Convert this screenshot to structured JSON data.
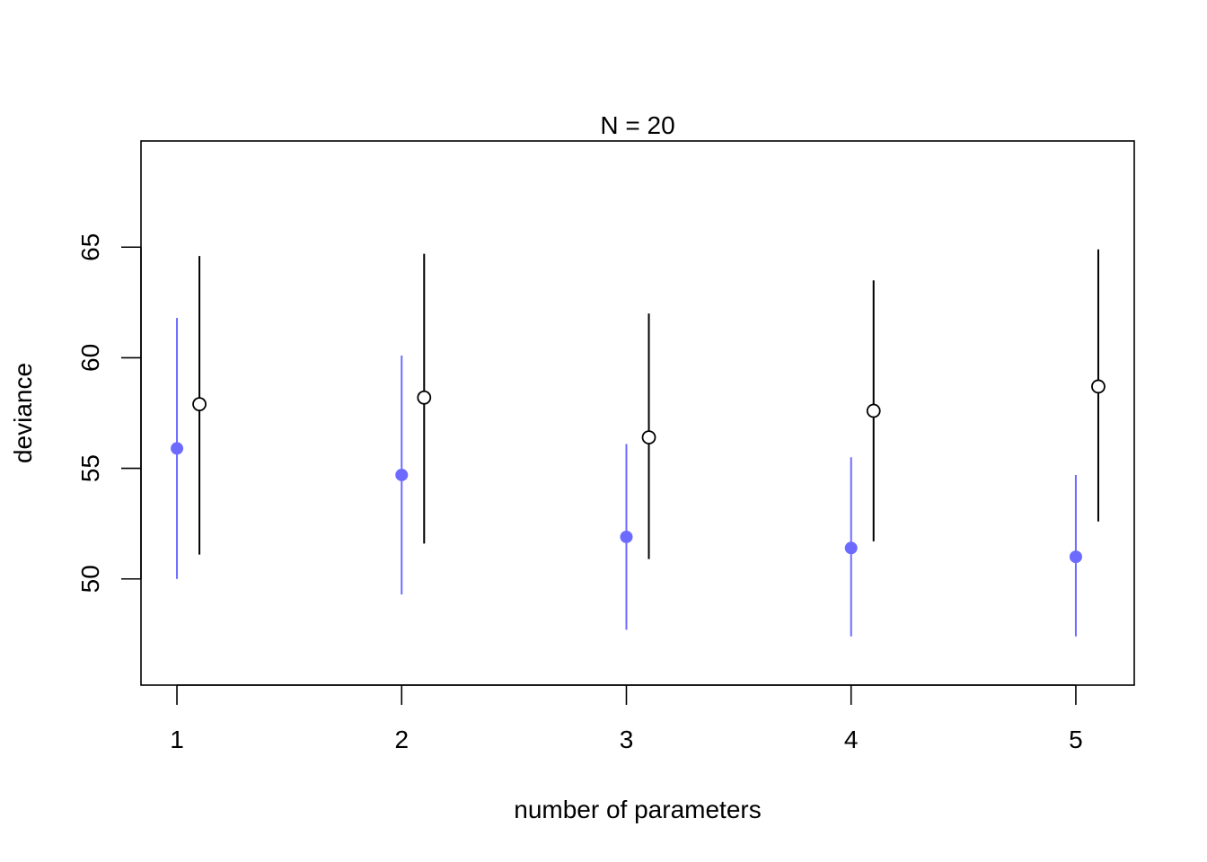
{
  "chart_data": {
    "type": "scatter",
    "title": "N = 20",
    "xlabel": "number of parameters",
    "ylabel": "deviance",
    "x_ticks": [
      "1",
      "2",
      "3",
      "4",
      "5"
    ],
    "y_ticks": [
      "50",
      "55",
      "60",
      "65"
    ],
    "x_range": [
      0.84,
      5.26
    ],
    "y_range": [
      45.2,
      69.8
    ],
    "grid": false,
    "legend": "none",
    "offset": 0.1,
    "series": [
      {
        "color": "#6d6bff",
        "marker": "filled-circle",
        "points": [
          {
            "x": 1,
            "y": 55.9,
            "low": 50.0,
            "high": 61.8
          },
          {
            "x": 2,
            "y": 54.7,
            "low": 49.3,
            "high": 60.1
          },
          {
            "x": 3,
            "y": 51.9,
            "low": 47.7,
            "high": 56.1
          },
          {
            "x": 4,
            "y": 51.4,
            "low": 47.4,
            "high": 55.5
          },
          {
            "x": 5,
            "y": 51.0,
            "low": 47.4,
            "high": 54.7
          }
        ]
      },
      {
        "color": "#000000",
        "marker": "open-circle",
        "points": [
          {
            "x": 1,
            "y": 57.9,
            "low": 51.1,
            "high": 64.6
          },
          {
            "x": 2,
            "y": 58.2,
            "low": 51.6,
            "high": 64.7
          },
          {
            "x": 3,
            "y": 56.4,
            "low": 50.9,
            "high": 62.0
          },
          {
            "x": 4,
            "y": 57.6,
            "low": 51.7,
            "high": 63.5
          },
          {
            "x": 5,
            "y": 58.7,
            "low": 52.6,
            "high": 64.9
          }
        ]
      }
    ]
  }
}
